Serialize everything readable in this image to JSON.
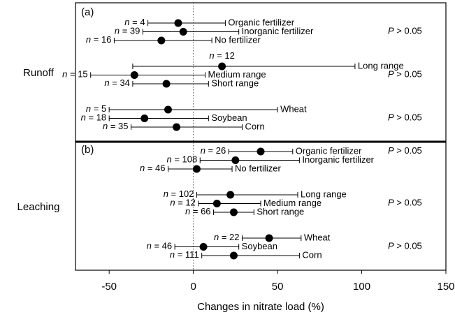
{
  "chart_data": {
    "type": "forest",
    "xlabel": "Changes in nitrate load (%)",
    "xlim": [
      -70,
      150
    ],
    "xticks": [
      -50,
      0,
      50,
      100,
      150
    ],
    "reference_x": 0,
    "panels": [
      {
        "label": "(a)",
        "name": "Runoff",
        "groups": [
          {
            "p_label": "P > 0.05",
            "rows": [
              {
                "name": "Organic fertilizer",
                "n_label": "n = 4",
                "value": -9,
                "ci": [
                  -27,
                  19
                ]
              },
              {
                "name": "Inorganic fertilizer",
                "n_label": "n = 39",
                "value": -6,
                "ci": [
                  -30,
                  27
                ]
              },
              {
                "name": "No fertilizer",
                "n_label": "n = 16",
                "value": -19,
                "ci": [
                  -47,
                  11
                ]
              }
            ]
          },
          {
            "p_label": "P > 0.05",
            "rows": [
              {
                "name": "Long range",
                "n_label": "n = 12",
                "value": 17,
                "ci": [
                  -36,
                  96
                ]
              },
              {
                "name": "Medium range",
                "n_label": "n = 15",
                "value": -35,
                "ci": [
                  -61,
                  7
                ]
              },
              {
                "name": "Short range",
                "n_label": "n = 34",
                "value": -16,
                "ci": [
                  -36,
                  9
                ]
              }
            ]
          },
          {
            "p_label": "P > 0.05",
            "rows": [
              {
                "name": "Wheat",
                "n_label": "n = 5",
                "value": -15,
                "ci": [
                  -50,
                  50
                ]
              },
              {
                "name": "Soybean",
                "n_label": "n = 18",
                "value": -29,
                "ci": [
                  -50,
                  9
                ]
              },
              {
                "name": "Corn",
                "n_label": "n = 35",
                "value": -10,
                "ci": [
                  -37,
                  29
                ]
              }
            ]
          }
        ]
      },
      {
        "label": "(b)",
        "name": "Leaching",
        "groups": [
          {
            "p_label": "P > 0.05",
            "rows": [
              {
                "name": "Organic fertilizer",
                "n_label": "n = 26",
                "value": 40,
                "ci": [
                  21,
                  59
                ]
              },
              {
                "name": "Inorganic fertilizer",
                "n_label": "n = 108",
                "value": 25,
                "ci": [
                  4,
                  63
                ]
              },
              {
                "name": "No fertilizer",
                "n_label": "n = 46",
                "value": 2,
                "ci": [
                  -15,
                  23
                ]
              }
            ]
          },
          {
            "p_label": "P > 0.05",
            "rows": [
              {
                "name": "Long range",
                "n_label": "n = 102",
                "value": 22,
                "ci": [
                  2,
                  62
                ]
              },
              {
                "name": "Medium range",
                "n_label": "n = 12",
                "value": 14,
                "ci": [
                  3,
                  40
                ]
              },
              {
                "name": "Short range",
                "n_label": "n = 66",
                "value": 24,
                "ci": [
                  12,
                  36
                ]
              }
            ]
          },
          {
            "p_label": "P > 0.05",
            "rows": [
              {
                "name": "Wheat",
                "n_label": "n = 22",
                "value": 45,
                "ci": [
                  29,
                  64
                ]
              },
              {
                "name": "Soybean",
                "n_label": "n = 46",
                "value": 6,
                "ci": [
                  -11,
                  27
                ]
              },
              {
                "name": "Corn",
                "n_label": "n = 111",
                "value": 24,
                "ci": [
                  5,
                  63
                ]
              }
            ]
          }
        ]
      }
    ]
  }
}
